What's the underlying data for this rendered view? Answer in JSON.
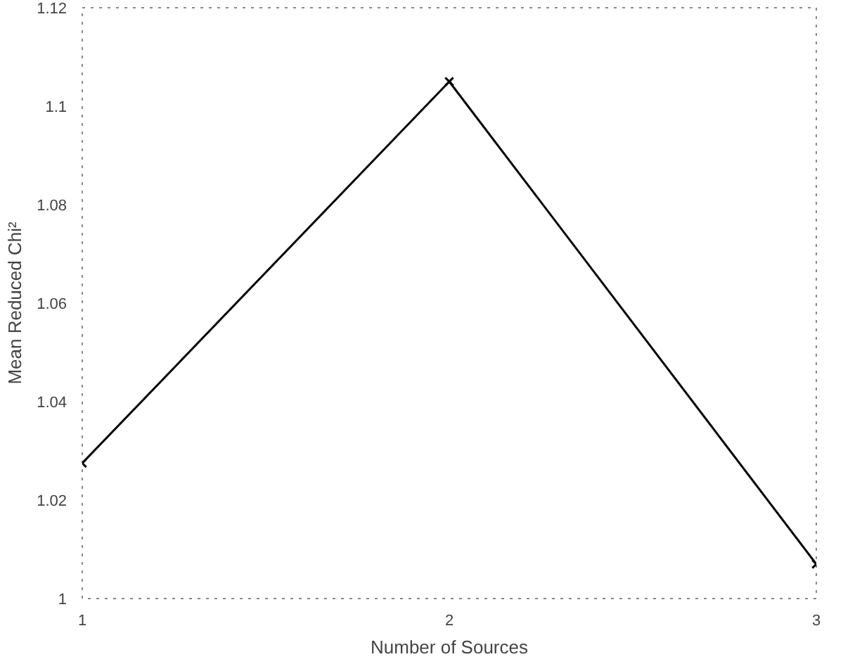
{
  "chart_data": {
    "type": "line",
    "xlabel": "Number of Sources",
    "ylabel": "Mean Reduced Chi²",
    "x": [
      1,
      2,
      3
    ],
    "xlim": [
      1,
      3
    ],
    "xticks": [
      1,
      2,
      3
    ],
    "ylim": [
      1,
      1.12
    ],
    "yticks": [
      1,
      1.02,
      1.04,
      1.06,
      1.08,
      1.1,
      1.12
    ],
    "series": [
      {
        "color": "#000000",
        "values": [
          1.0275,
          1.105,
          1.007
        ]
      }
    ],
    "marker": "cross",
    "line_style": "solid",
    "grid": false
  }
}
